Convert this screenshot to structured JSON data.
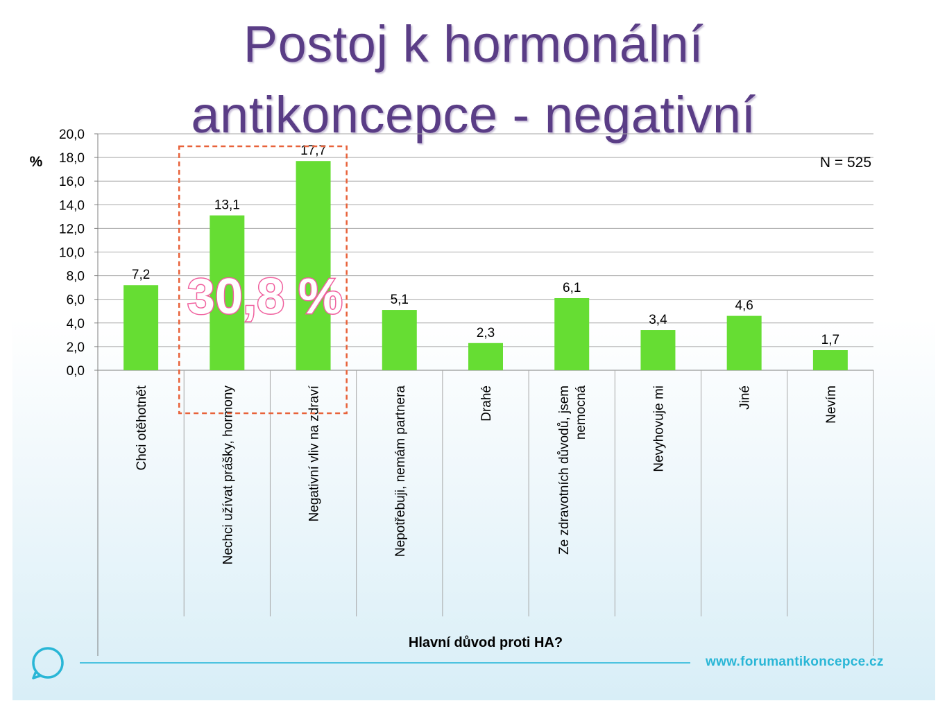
{
  "slide": {
    "title_line1": "Postoj k hormonální",
    "title_line2": "antikoncepce - negativní",
    "footer_url": "www.forumantikoncepce.cz",
    "logo_icon": "speech-bubble-icon"
  },
  "chart_data": {
    "type": "bar",
    "ylabel": "%",
    "xlabel": "Hlavní důvod proti HA?",
    "ylim": [
      0,
      20
    ],
    "yticks": [
      "0,0",
      "2,0",
      "4,0",
      "6,0",
      "8,0",
      "10,0",
      "12,0",
      "14,0",
      "16,0",
      "18,0",
      "20,0"
    ],
    "categories": [
      [
        "Chci otěhotnět"
      ],
      [
        "Nechci užívat prášky, hormony"
      ],
      [
        "Negativní vliv na zdraví"
      ],
      [
        "Nepotřebuji, nemám partnera"
      ],
      [
        "Drahé"
      ],
      [
        "Ze zdravotních důvodů, jsem",
        "nemocná"
      ],
      [
        "Nevyhovuje mi"
      ],
      [
        "Jiné"
      ],
      [
        "Nevím"
      ]
    ],
    "values": [
      7.2,
      13.1,
      17.7,
      5.1,
      2.3,
      6.1,
      3.4,
      4.6,
      1.7
    ],
    "value_labels": [
      "7,2",
      "13,1",
      "17,7",
      "5,1",
      "2,3",
      "6,1",
      "3,4",
      "4,6",
      "1,7"
    ],
    "n_label": "N = 525",
    "highlight": {
      "categories": [
        1,
        2
      ],
      "label": "30,8 %"
    },
    "grid": true,
    "colors": {
      "bar": "#66dd33",
      "grid": "#a6a6a6",
      "highlight_box": "#e8623a",
      "highlight_text": "#f0609e"
    }
  }
}
